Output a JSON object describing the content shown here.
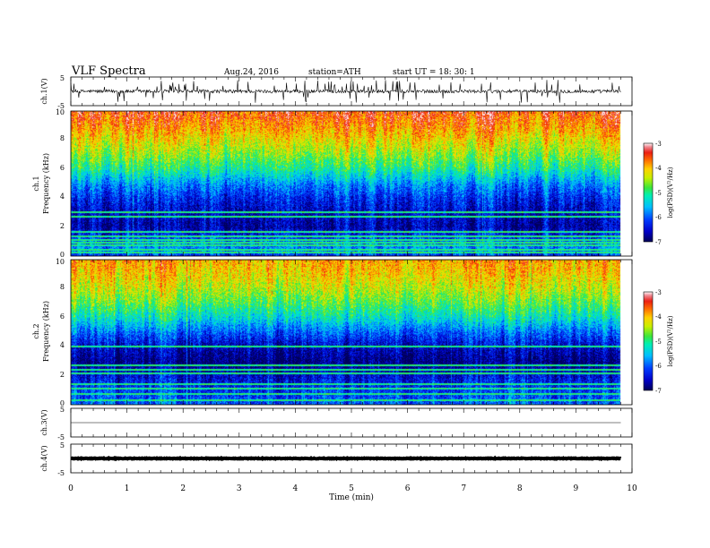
{
  "header": {
    "title": "VLF  Spectra",
    "date": "Aug.24, 2016",
    "station": "station=ATH",
    "start": "start  UT  =   18: 30: 1"
  },
  "colorbar_label": "log(PSD)(V²/Hz)",
  "chart_data": [
    {
      "type": "line",
      "name": "ch1-waveform",
      "ylabel": "ch.1(V)",
      "ylim": [
        -5,
        5
      ],
      "yticks": [
        "5",
        "-5"
      ],
      "xlim": [
        0,
        10
      ],
      "baseline": 0,
      "amplitude_range": [
        -1.5,
        1.5
      ],
      "color": "#000000"
    },
    {
      "type": "heatmap",
      "name": "ch1-spectrogram",
      "ylabel": "ch.1\nFrequency  (kHz)",
      "ylabel_lines": [
        "ch.1",
        "Frequency  (kHz)"
      ],
      "ylim": [
        0,
        10
      ],
      "yticks": [
        "0",
        "2",
        "4",
        "6",
        "8",
        "10"
      ],
      "xlim": [
        0,
        10
      ],
      "data_end_min": 9.8,
      "color_range": [
        -7,
        -3
      ],
      "colorbar_ticks": [
        "-3",
        "-4",
        "-5",
        "-6",
        "-7"
      ],
      "profile": [
        {
          "f": 0.0,
          "v": -6.3
        },
        {
          "f": 0.5,
          "v": -5.8
        },
        {
          "f": 1.0,
          "v": -6.0
        },
        {
          "f": 2.0,
          "v": -6.7
        },
        {
          "f": 3.0,
          "v": -6.6
        },
        {
          "f": 4.0,
          "v": -6.3
        },
        {
          "f": 5.0,
          "v": -5.8
        },
        {
          "f": 6.0,
          "v": -5.1
        },
        {
          "f": 7.0,
          "v": -4.6
        },
        {
          "f": 8.0,
          "v": -4.2
        },
        {
          "f": 9.0,
          "v": -3.8
        },
        {
          "f": 10.0,
          "v": -3.5
        }
      ],
      "lines_khz": [
        0.3,
        0.5,
        0.8,
        1.0,
        1.2,
        1.4,
        1.7,
        2.8,
        3.1
      ]
    },
    {
      "type": "heatmap",
      "name": "ch2-spectrogram",
      "ylabel": "ch.2\nFrequency  (kHz)",
      "ylabel_lines": [
        "ch.2",
        "Frequency  (kHz)"
      ],
      "ylim": [
        0,
        10
      ],
      "yticks": [
        "0",
        "2",
        "4",
        "6",
        "8",
        "10"
      ],
      "xlim": [
        0,
        10
      ],
      "data_end_min": 9.8,
      "color_range": [
        -7,
        -3
      ],
      "colorbar_ticks": [
        "-3",
        "-4",
        "-5",
        "-6",
        "-7"
      ],
      "profile": [
        {
          "f": 0.0,
          "v": -6.0
        },
        {
          "f": 1.0,
          "v": -6.2
        },
        {
          "f": 2.0,
          "v": -6.5
        },
        {
          "f": 3.0,
          "v": -6.9
        },
        {
          "f": 4.0,
          "v": -6.6
        },
        {
          "f": 5.0,
          "v": -6.0
        },
        {
          "f": 6.0,
          "v": -5.3
        },
        {
          "f": 7.0,
          "v": -4.8
        },
        {
          "f": 8.0,
          "v": -4.4
        },
        {
          "f": 9.0,
          "v": -4.1
        },
        {
          "f": 10.0,
          "v": -3.9
        }
      ],
      "lines_khz": [
        0.4,
        0.8,
        1.2,
        1.5,
        2.2,
        2.5,
        2.8,
        4.1
      ]
    },
    {
      "type": "line",
      "name": "ch3-waveform",
      "ylabel": "ch.3(V)",
      "ylim": [
        -5,
        5
      ],
      "yticks": [
        "5",
        "-5"
      ],
      "xlim": [
        0,
        10
      ],
      "baseline": 0,
      "amplitude_range": [
        0,
        0
      ],
      "color": "#000000"
    },
    {
      "type": "line",
      "name": "ch4-waveform",
      "ylabel": "ch.4(V)",
      "ylim": [
        -5,
        5
      ],
      "yticks": [
        "5",
        "-5"
      ],
      "xlim": [
        0,
        10
      ],
      "baseline": 0,
      "amplitude_range": [
        -0.3,
        0.3
      ],
      "color": "#000000"
    }
  ],
  "x_axis": {
    "xlabel": "Time  (min)",
    "xticks": [
      "0",
      "1",
      "2",
      "3",
      "4",
      "5",
      "6",
      "7",
      "8",
      "9",
      "10"
    ],
    "xlim": [
      0,
      10
    ]
  }
}
